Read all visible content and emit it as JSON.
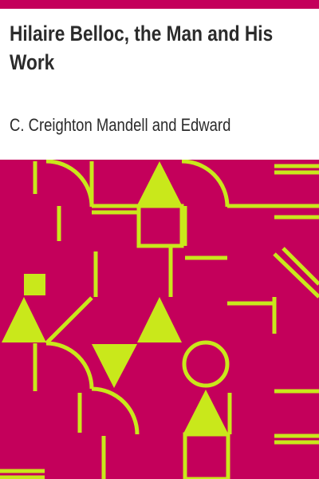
{
  "cover": {
    "title": "Hilaire Belloc, the Man and His Work",
    "author": "C. Creighton Mandell and Edward",
    "colors": {
      "accent": "#c4005b",
      "pattern": "#c9e81b",
      "text": "#2b2b2b",
      "background": "#ffffff"
    }
  }
}
